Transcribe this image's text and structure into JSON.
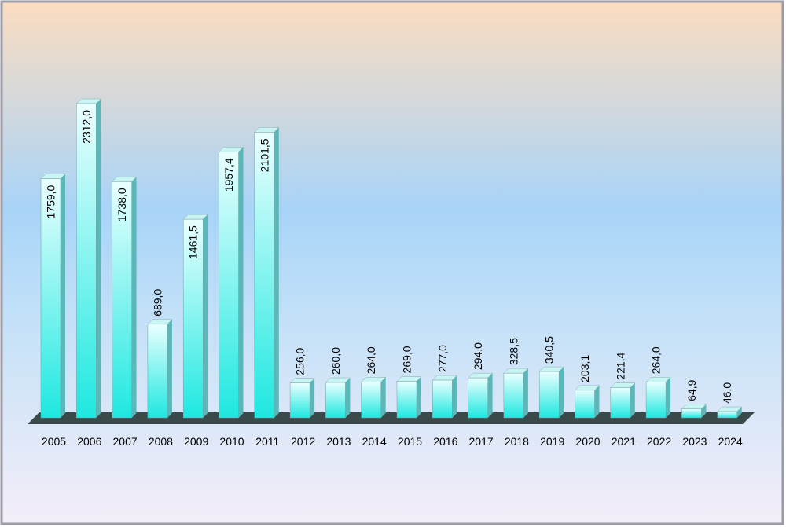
{
  "chart_data": {
    "type": "bar",
    "categories": [
      "2005",
      "2006",
      "2007",
      "2008",
      "2009",
      "2010",
      "2011",
      "2012",
      "2013",
      "2014",
      "2015",
      "2016",
      "2017",
      "2018",
      "2019",
      "2020",
      "2021",
      "2022",
      "2023",
      "2024"
    ],
    "values": [
      1759,
      2312,
      1738,
      689,
      1461.5,
      1957.4,
      2101.5,
      256,
      260,
      264,
      269,
      277,
      294,
      328.5,
      340.5,
      203.1,
      221.4,
      264,
      64.9,
      46
    ],
    "value_labels": [
      "1759,0",
      "2312,0",
      "1738,0",
      "689,0",
      "1461,5",
      "1957,4",
      "2101,5",
      "256,0",
      "260,0",
      "264,0",
      "269,0",
      "277,0",
      "294,0",
      "328,5",
      "340,5",
      "203,1",
      "221,4",
      "264,0",
      "64,9",
      "46,0"
    ],
    "color": "#22e6e0"
  }
}
